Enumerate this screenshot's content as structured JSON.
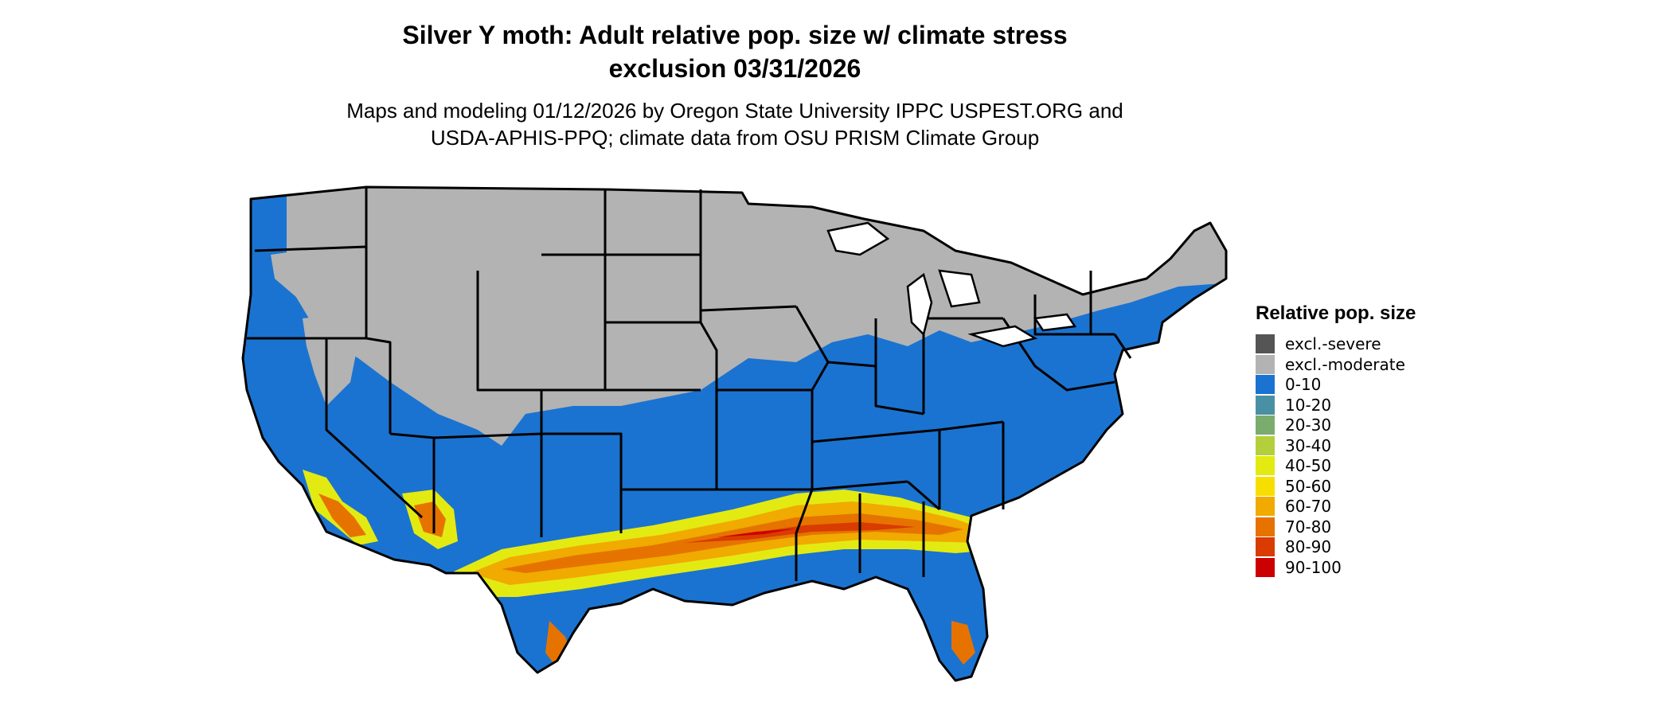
{
  "title": {
    "line1": "Silver Y moth: Adult relative pop. size w/ climate stress",
    "line2": "exclusion 03/31/2026"
  },
  "subtitle": {
    "line1": "Maps and modeling 01/12/2026 by Oregon State University IPPC USPEST.ORG and",
    "line2": "USDA-APHIS-PPQ; climate data from OSU PRISM Climate Group"
  },
  "legend": {
    "title": "Relative pop. size",
    "items": [
      {
        "label": "excl.-severe",
        "color": "#555555"
      },
      {
        "label": "excl.-moderate",
        "color": "#b3b3b3"
      },
      {
        "label": "0-10",
        "color": "#1a73d0"
      },
      {
        "label": "10-20",
        "color": "#4a90a4"
      },
      {
        "label": "20-30",
        "color": "#7aac6e"
      },
      {
        "label": "30-40",
        "color": "#b3cf3c"
      },
      {
        "label": "40-50",
        "color": "#e3ea12"
      },
      {
        "label": "50-60",
        "color": "#f8de00"
      },
      {
        "label": "60-70",
        "color": "#f0aa00"
      },
      {
        "label": "70-80",
        "color": "#e67300"
      },
      {
        "label": "80-90",
        "color": "#d93b00"
      },
      {
        "label": "90-100",
        "color": "#cc0000"
      }
    ]
  },
  "map": {
    "region": "Conterminous United States",
    "state_borders": true,
    "pattern": "Northern tier and Rocky Mountain interior excluded (moderate); most of the country 0-10; a band of 40-100 across the Gulf Coast states from central Texas to Georgia and South Carolina, plus southern California desert, central Arizona, and central Florida"
  }
}
